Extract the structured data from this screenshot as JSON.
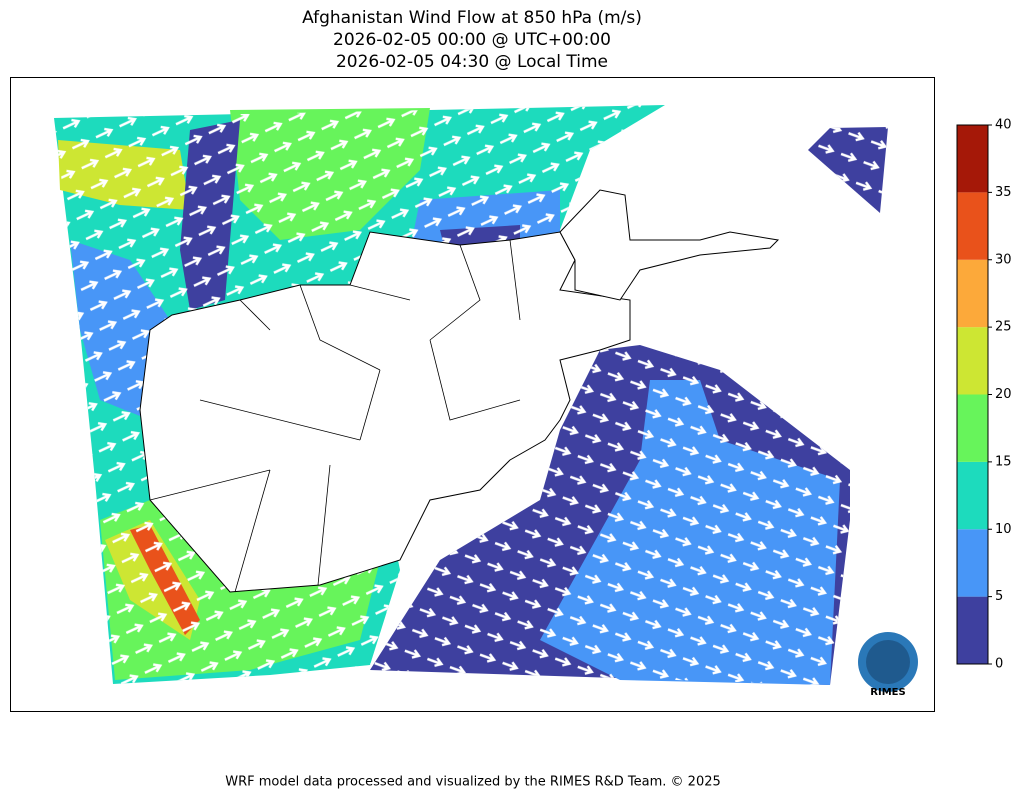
{
  "title": [
    "Afghanistan Wind Flow at 850 hPa (m/s)",
    "2026-02-05 00:00 @ UTC+00:00",
    "2026-02-05 04:30 @ Local Time"
  ],
  "colorbar": {
    "ticks": [
      0,
      5,
      10,
      15,
      20,
      25,
      30,
      35,
      40
    ],
    "colors": [
      "#3e409f",
      "#4896f7",
      "#1ddbbd",
      "#67f45b",
      "#cde633",
      "#fca93a",
      "#e9521b",
      "#a51808"
    ]
  },
  "logo": "RIMES",
  "footer": "WRF model data processed and visualized by the RIMES R&D Team. © 2025"
}
